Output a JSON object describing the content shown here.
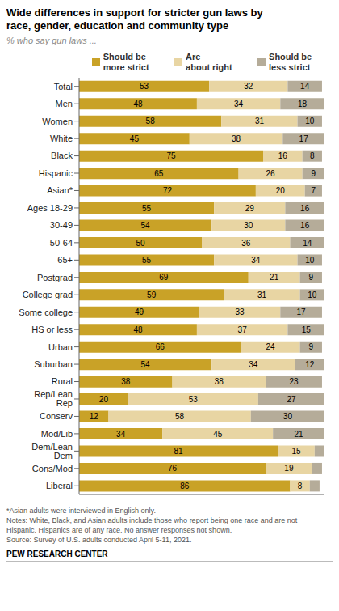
{
  "chart_data": {
    "type": "bar",
    "orientation": "horizontal",
    "stacked": true,
    "data_labels": true,
    "tick_labels": "y",
    "grid": false,
    "legend": "top",
    "title": "Wide differences in support for stricter gun laws by\nrace, gender, education and community type",
    "subtitle": "% who say gun laws ...",
    "categories": [
      "Total",
      "Men",
      "Women",
      "White",
      "Black",
      "Hispanic",
      "Asian*",
      "Ages 18-29",
      "30-49",
      "50-64",
      "65+",
      "Postgrad",
      "College grad",
      "Some college",
      "HS or less",
      "Urban",
      "Suburban",
      "Rural",
      "Rep/Lean Rep",
      "Conserv",
      "Mod/Lib",
      "Dem/Lean Dem",
      "Cons/Mod",
      "Liberal"
    ],
    "series": [
      {
        "name": "Should be\nmore strict",
        "color": "#c9a227",
        "values": [
          53,
          48,
          58,
          45,
          75,
          65,
          72,
          55,
          54,
          50,
          55,
          69,
          59,
          49,
          48,
          66,
          54,
          38,
          20,
          12,
          34,
          81,
          76,
          86
        ]
      },
      {
        "name": "Are\nabout right",
        "color": "#e8d5a3",
        "values": [
          32,
          34,
          31,
          38,
          16,
          26,
          20,
          29,
          30,
          36,
          34,
          21,
          31,
          33,
          37,
          24,
          34,
          38,
          53,
          58,
          45,
          15,
          19,
          8
        ]
      },
      {
        "name": "Should be\nless strict",
        "color": "#b5ac99",
        "values": [
          14,
          18,
          10,
          17,
          8,
          9,
          7,
          16,
          16,
          14,
          10,
          9,
          10,
          17,
          15,
          9,
          12,
          23,
          27,
          30,
          21,
          4,
          4,
          4
        ],
        "value_labels": [
          "14",
          "18",
          "10",
          "17",
          "8",
          "9",
          "7",
          "16",
          "16",
          "14",
          "10",
          "9",
          "10",
          "17",
          "15",
          "9",
          "12",
          "23",
          "27",
          "30",
          "21",
          null,
          null,
          null
        ]
      }
    ],
    "xlim": [
      0,
      100
    ],
    "annotations": [
      "*Asian adults were interviewed in English only.",
      "Notes: White, Black, and Asian adults include those who report being one race and are not",
      "Hispanic. Hispanics are of any race. No answer responses not shown.",
      "Source: Survey of U.S. adults conducted April 5-11, 2021.",
      "PEW RESEARCH CENTER"
    ]
  }
}
